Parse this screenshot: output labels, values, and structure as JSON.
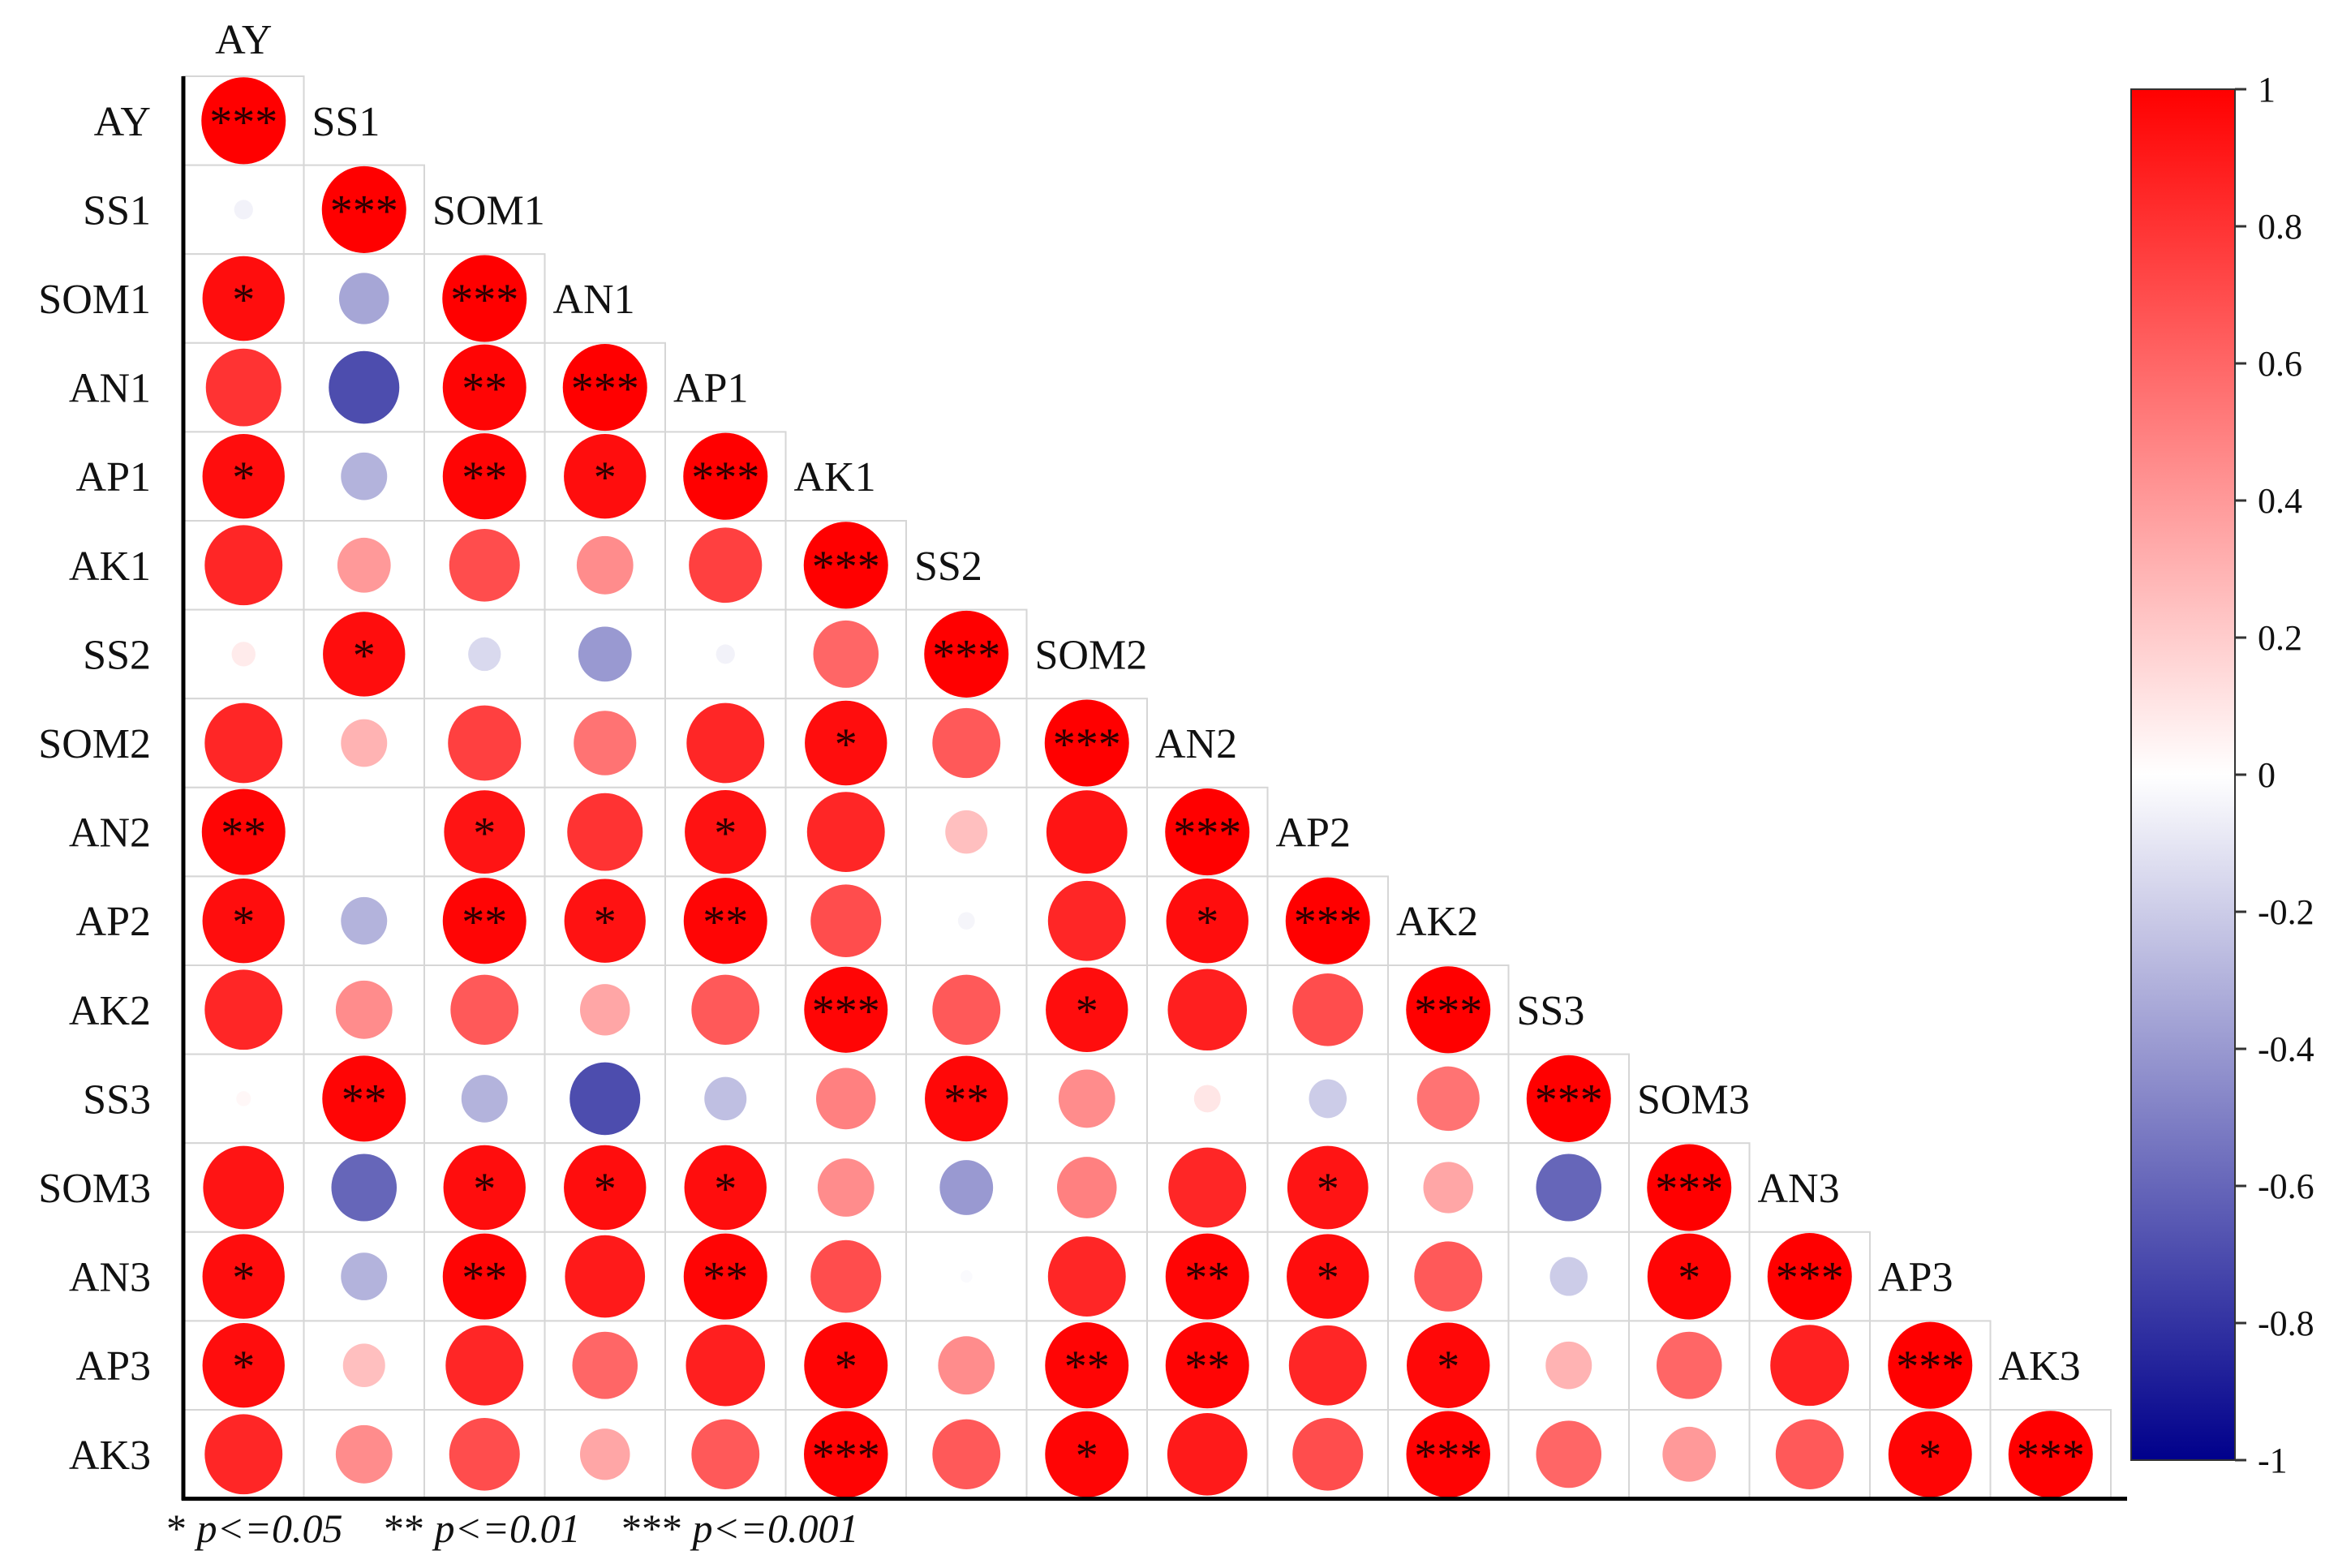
{
  "chart_data": {
    "type": "heatmap",
    "variables": [
      "AY",
      "SS1",
      "SOM1",
      "AN1",
      "AP1",
      "AK1",
      "SS2",
      "SOM2",
      "AN2",
      "AP2",
      "AK2",
      "SS3",
      "SOM3",
      "AN3",
      "AP3",
      "AK3"
    ],
    "matrix_lower": [
      [
        1.0
      ],
      [
        -0.05,
        1.0
      ],
      [
        0.95,
        -0.35,
        1.0
      ],
      [
        0.8,
        -0.7,
        0.98,
        1.0
      ],
      [
        0.95,
        -0.3,
        0.98,
        0.95,
        1.0
      ],
      [
        0.85,
        0.4,
        0.7,
        0.45,
        0.75,
        1.0
      ],
      [
        0.08,
        0.95,
        -0.15,
        -0.4,
        -0.05,
        0.6,
        1.0
      ],
      [
        0.85,
        0.3,
        0.75,
        0.55,
        0.85,
        0.95,
        0.65,
        1.0
      ],
      [
        0.98,
        0.0,
        0.92,
        0.8,
        0.93,
        0.85,
        0.25,
        0.92,
        1.0
      ],
      [
        0.95,
        -0.3,
        0.98,
        0.93,
        0.98,
        0.7,
        -0.04,
        0.85,
        0.95,
        1.0
      ],
      [
        0.85,
        0.45,
        0.65,
        0.35,
        0.65,
        0.98,
        0.65,
        0.95,
        0.88,
        0.7,
        1.0
      ],
      [
        0.03,
        0.98,
        -0.3,
        -0.7,
        -0.25,
        0.5,
        0.97,
        0.45,
        0.1,
        -0.2,
        0.55,
        1.0
      ],
      [
        0.92,
        -0.6,
        0.95,
        0.95,
        0.95,
        0.45,
        -0.4,
        0.5,
        0.85,
        0.92,
        0.35,
        -0.6,
        1.0
      ],
      [
        0.95,
        -0.3,
        0.98,
        0.9,
        0.98,
        0.7,
        -0.02,
        0.85,
        0.98,
        0.95,
        0.65,
        -0.2,
        0.98,
        1.0
      ],
      [
        0.95,
        0.25,
        0.85,
        0.6,
        0.88,
        0.98,
        0.45,
        0.98,
        0.98,
        0.85,
        0.97,
        0.3,
        0.6,
        0.87,
        1.0
      ],
      [
        0.85,
        0.45,
        0.7,
        0.35,
        0.65,
        0.99,
        0.65,
        0.98,
        0.9,
        0.7,
        0.99,
        0.6,
        0.4,
        0.65,
        0.98,
        1.0
      ]
    ],
    "significance_lower": [
      [
        "***"
      ],
      [
        "",
        "***"
      ],
      [
        "*",
        "",
        "***"
      ],
      [
        "",
        "",
        "**",
        "***"
      ],
      [
        "*",
        "",
        "**",
        "*",
        "***"
      ],
      [
        "",
        "",
        "",
        "",
        "",
        "***"
      ],
      [
        "",
        "*",
        "",
        "",
        "",
        "",
        "***"
      ],
      [
        "",
        "",
        "",
        "",
        "",
        "*",
        "",
        "***"
      ],
      [
        "**",
        "",
        "*",
        "",
        "*",
        "",
        "",
        "",
        "***"
      ],
      [
        "*",
        "",
        "**",
        "*",
        "**",
        "",
        "",
        "",
        "*",
        "***"
      ],
      [
        "",
        "",
        "",
        "",
        "",
        "***",
        "",
        "*",
        "",
        "",
        "***"
      ],
      [
        "",
        "**",
        "",
        "",
        "",
        "",
        "**",
        "",
        "",
        "",
        "",
        "***"
      ],
      [
        "",
        "",
        "*",
        "*",
        "*",
        "",
        "",
        "",
        "",
        "*",
        "",
        "",
        "***"
      ],
      [
        "*",
        "",
        "**",
        "",
        "**",
        "",
        "",
        "",
        "**",
        "*",
        "",
        "",
        "*",
        "***"
      ],
      [
        "*",
        "",
        "",
        "",
        "",
        "*",
        "",
        "**",
        "**",
        "",
        "*",
        "",
        "",
        "",
        "***"
      ],
      [
        "",
        "",
        "",
        "",
        "",
        "***",
        "",
        "*",
        "",
        "",
        "***",
        "",
        "",
        "",
        "*",
        "***"
      ]
    ],
    "colorbar": {
      "range": [
        -1,
        1
      ],
      "tick_labels": [
        "1",
        "0.8",
        "0.6",
        "0.4",
        "0.2",
        "0",
        "-0.2",
        "-0.4",
        "-0.6",
        "-0.8",
        "-1"
      ],
      "colors": {
        "positive": "#ff0000",
        "zero": "#ffffff",
        "negative": "#00008b"
      }
    },
    "significance_legend": [
      {
        "marker": "*",
        "text": "p<=0.05"
      },
      {
        "marker": "**",
        "text": "p<=0.01"
      },
      {
        "marker": "***",
        "text": "p<=0.001"
      }
    ]
  }
}
